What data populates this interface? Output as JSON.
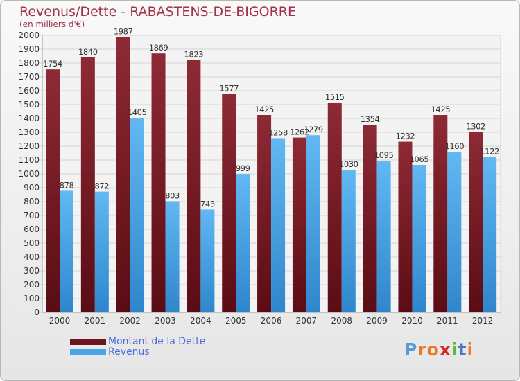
{
  "header": {
    "title": "Revenus/Dette - RABASTENS-DE-BIGORRE",
    "subtitle": "(en milliers d'€)"
  },
  "legend": {
    "dette_label": "Montant de la Dette",
    "revenus_label": "Revenus"
  },
  "logo": {
    "letters": [
      "P",
      "r",
      "o",
      "x",
      "i",
      "t",
      "i"
    ],
    "colors": [
      "#5a9bd4",
      "#e8782d",
      "#e8782d",
      "#d42a2a",
      "#5bbd3f",
      "#4a78c8",
      "#e8782d"
    ]
  },
  "chart_data": {
    "type": "bar",
    "title": "Revenus/Dette - RABASTENS-DE-BIGORRE",
    "subtitle": "(en milliers d'€)",
    "categories": [
      "2000",
      "2001",
      "2002",
      "2003",
      "2004",
      "2005",
      "2006",
      "2007",
      "2008",
      "2009",
      "2010",
      "2011",
      "2012"
    ],
    "series": [
      {
        "name": "Montant de la Dette",
        "color": "#6e1420",
        "values": [
          1754,
          1840,
          1987,
          1869,
          1823,
          1577,
          1425,
          1262,
          1515,
          1354,
          1232,
          1425,
          1302
        ]
      },
      {
        "name": "Revenus",
        "color": "#4aa3e6",
        "values": [
          878,
          872,
          1405,
          803,
          743,
          999,
          1258,
          1279,
          1030,
          1095,
          1065,
          1160,
          1122
        ]
      }
    ],
    "ylim": [
      0,
      2000
    ],
    "yticks": [
      0,
      100,
      200,
      300,
      400,
      500,
      600,
      700,
      800,
      900,
      1000,
      1100,
      1200,
      1300,
      1400,
      1500,
      1600,
      1700,
      1800,
      1900,
      2000
    ],
    "grid": true,
    "legend_position": "bottom-left"
  }
}
